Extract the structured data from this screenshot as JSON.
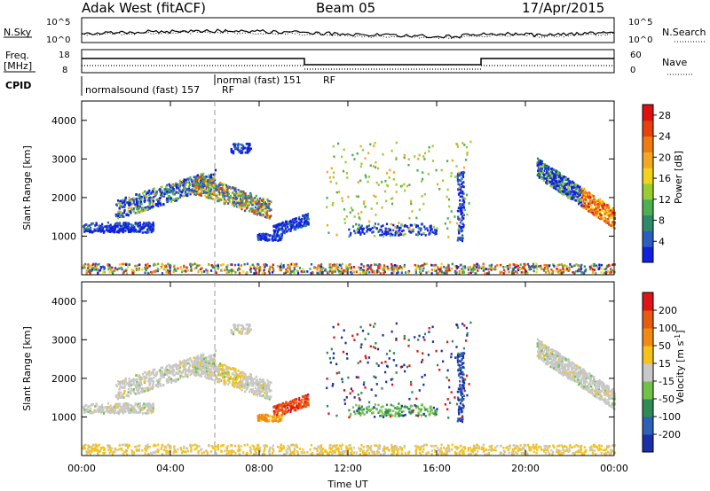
{
  "header": {
    "station": "Adak West (fitACF)",
    "beam": "Beam 05",
    "date": "17/Apr/2015"
  },
  "noise_panel": {
    "left_label": "N.Sky",
    "right_label": "N.Search",
    "left_ticks": [
      "10^5",
      "10^0"
    ],
    "right_ticks": [
      "10^5",
      "10^0"
    ]
  },
  "freq_panel": {
    "left_label": "Freq.",
    "left_unit": "[MHz]",
    "right_label": "Nave",
    "left_ticks": [
      "18",
      "8"
    ],
    "right_ticks": [
      "60",
      "0"
    ]
  },
  "cpid": {
    "label": "CPID",
    "programs": [
      {
        "name": "normalsound (fast) 157",
        "start_h": 0,
        "end_h": 6
      },
      {
        "name": "normal (fast) 151",
        "start_h": 6,
        "end_h": 24
      }
    ],
    "rf_tags": [
      "RF",
      "RF"
    ]
  },
  "chart_data": [
    {
      "type": "heatmap",
      "name": "Power",
      "ylabel": "Slant Range [km]",
      "xlim_hours": [
        0,
        24
      ],
      "ylim": [
        0,
        4500
      ],
      "y_ticks": [
        "4000",
        "3000",
        "2000",
        "1000"
      ],
      "y_tick_values": [
        4000,
        3000,
        2000,
        1000
      ],
      "colorbar_label": "Power [dB]",
      "colorbar_ticks": [
        "28",
        "24",
        "20",
        "16",
        "12",
        "8",
        "4"
      ],
      "colorbar_range": [
        0,
        30
      ],
      "colorbar_colors": [
        "#1020e0",
        "#2a5fc0",
        "#2e8a6a",
        "#4caf50",
        "#9acd32",
        "#f2d21b",
        "#f5a623",
        "#f07a10",
        "#e8400a",
        "#e01010"
      ]
    },
    {
      "type": "heatmap",
      "name": "Velocity",
      "ylabel": "Slant Range [km]",
      "xlim_hours": [
        0,
        24
      ],
      "ylim": [
        0,
        4500
      ],
      "y_ticks": [
        "4000",
        "3000",
        "2000",
        "1000"
      ],
      "y_tick_values": [
        4000,
        3000,
        2000,
        1000
      ],
      "colorbar_label": "Velocity [m s",
      "colorbar_label_sup": "-1",
      "colorbar_label_end": "]",
      "colorbar_ticks": [
        "200",
        "100",
        "50",
        "15",
        "-15",
        "-50",
        "-100",
        "-200"
      ],
      "colorbar_colors": [
        "#1c2fa8",
        "#2e60b8",
        "#2f8a56",
        "#72c24a",
        "#c8c8c8",
        "#f4c21a",
        "#f28a12",
        "#e85a10",
        "#e01414"
      ]
    }
  ],
  "time_axis": {
    "xlabel": "Time UT",
    "ticks": [
      "00:00",
      "04:00",
      "08:00",
      "12:00",
      "16:00",
      "20:00",
      "00:00"
    ],
    "tick_hours": [
      0,
      4,
      8,
      12,
      16,
      20,
      24
    ],
    "marker_hour": 6
  }
}
